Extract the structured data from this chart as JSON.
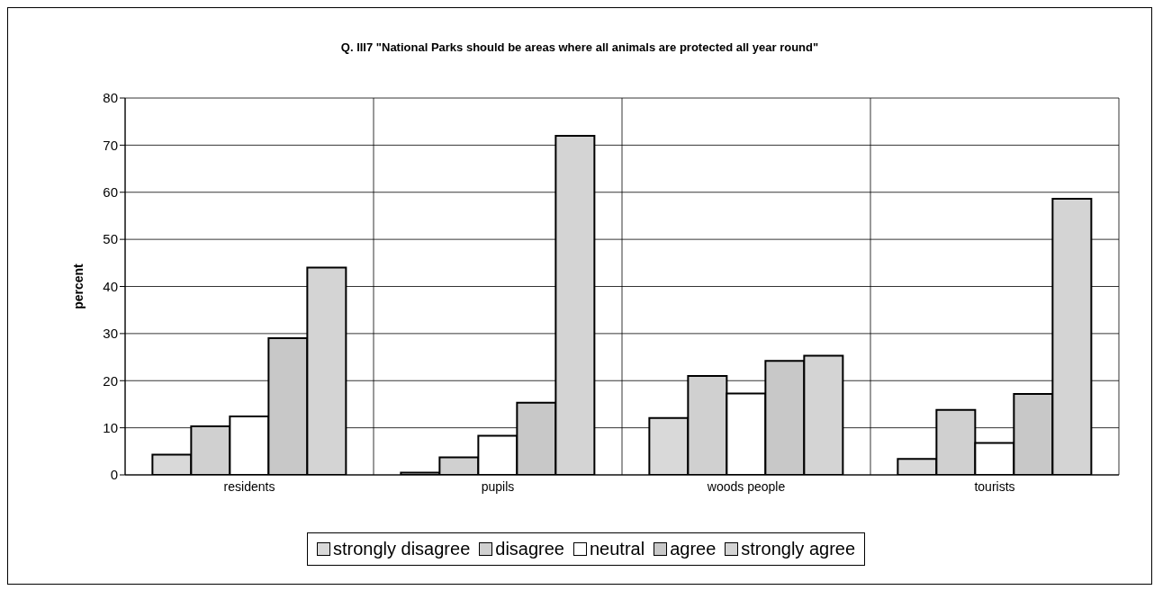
{
  "chart_data": {
    "type": "bar",
    "title": "Q. III7 \"National Parks should be areas where all animals are protected all year round\"",
    "ylabel": "percent",
    "categories": [
      "residents",
      "pupils",
      "woods people",
      "tourists"
    ],
    "series": [
      {
        "name": "strongly disagree",
        "color": "#d9d9d9",
        "values": [
          4.3,
          0.5,
          12.1,
          3.4
        ]
      },
      {
        "name": "disagree",
        "color": "#d0d0d0",
        "values": [
          10.3,
          3.7,
          21,
          13.8
        ]
      },
      {
        "name": "neutral",
        "color": "#ffffff",
        "values": [
          12.4,
          8.3,
          17.3,
          6.8
        ]
      },
      {
        "name": "agree",
        "color": "#c8c8c8",
        "values": [
          29,
          15.3,
          24.2,
          17.2
        ]
      },
      {
        "name": "strongly agree",
        "color": "#d4d4d4",
        "values": [
          44,
          72,
          25.3,
          58.6
        ]
      }
    ],
    "ylim": [
      0,
      80
    ],
    "yticks": [
      0,
      10,
      20,
      30,
      40,
      50,
      60,
      70,
      80
    ],
    "grid": true,
    "legend": "bottom"
  }
}
